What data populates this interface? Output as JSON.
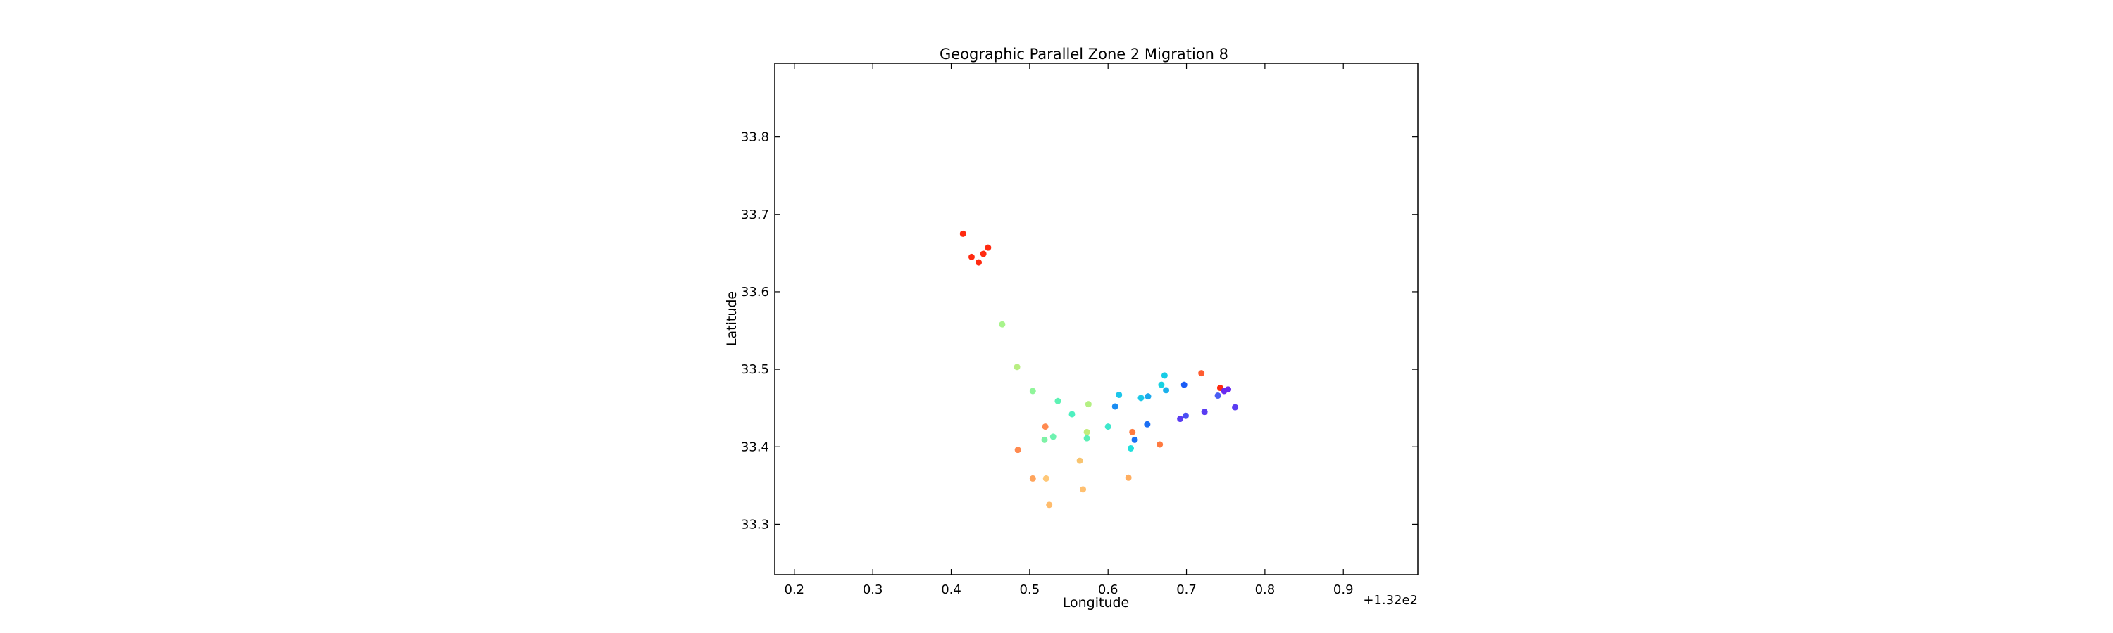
{
  "chart_data": {
    "type": "scatter",
    "title": "Geographic Parallel Zone 2 Migration 8",
    "xlabel": "Longitude",
    "ylabel": "Latitude",
    "x_offset_label": "+1.32e2",
    "xlim": [
      0.175,
      0.995
    ],
    "ylim": [
      33.235,
      33.895
    ],
    "xticks": [
      0.2,
      0.3,
      0.4,
      0.5,
      0.6,
      0.7,
      0.8,
      0.9
    ],
    "yticks": [
      33.3,
      33.4,
      33.5,
      33.6,
      33.7,
      33.8
    ],
    "xtick_labels": [
      "0.2",
      "0.3",
      "0.4",
      "0.5",
      "0.6",
      "0.7",
      "0.8",
      "0.9"
    ],
    "ytick_labels": [
      "33.3",
      "33.4",
      "33.5",
      "33.6",
      "33.7",
      "33.8"
    ],
    "grid": false,
    "colormap": "rainbow",
    "points": [
      {
        "x": 0.415,
        "y": 33.675,
        "color": "#ff2a10"
      },
      {
        "x": 0.447,
        "y": 33.657,
        "color": "#ff2a10"
      },
      {
        "x": 0.441,
        "y": 33.649,
        "color": "#ff2a10"
      },
      {
        "x": 0.426,
        "y": 33.645,
        "color": "#ff2a10"
      },
      {
        "x": 0.435,
        "y": 33.638,
        "color": "#ff2a10"
      },
      {
        "x": 0.465,
        "y": 33.558,
        "color": "#a8f48c"
      },
      {
        "x": 0.484,
        "y": 33.503,
        "color": "#b8ee82"
      },
      {
        "x": 0.504,
        "y": 33.472,
        "color": "#90f59a"
      },
      {
        "x": 0.536,
        "y": 33.459,
        "color": "#5df2b4"
      },
      {
        "x": 0.575,
        "y": 33.455,
        "color": "#b4f083"
      },
      {
        "x": 0.554,
        "y": 33.442,
        "color": "#4ef0c0"
      },
      {
        "x": 0.6,
        "y": 33.426,
        "color": "#3ee8cc"
      },
      {
        "x": 0.573,
        "y": 33.419,
        "color": "#c2ec7a"
      },
      {
        "x": 0.53,
        "y": 33.413,
        "color": "#6ef2b0"
      },
      {
        "x": 0.519,
        "y": 33.409,
        "color": "#7ef2a6"
      },
      {
        "x": 0.573,
        "y": 33.411,
        "color": "#5cefb6"
      },
      {
        "x": 0.52,
        "y": 33.426,
        "color": "#ff8a50"
      },
      {
        "x": 0.485,
        "y": 33.396,
        "color": "#ff8a50"
      },
      {
        "x": 0.631,
        "y": 33.419,
        "color": "#ff7a40"
      },
      {
        "x": 0.666,
        "y": 33.403,
        "color": "#ff7a40"
      },
      {
        "x": 0.629,
        "y": 33.398,
        "color": "#22e0dc"
      },
      {
        "x": 0.634,
        "y": 33.409,
        "color": "#1a70f4"
      },
      {
        "x": 0.564,
        "y": 33.382,
        "color": "#f8c470"
      },
      {
        "x": 0.504,
        "y": 33.359,
        "color": "#ffa45c"
      },
      {
        "x": 0.521,
        "y": 33.359,
        "color": "#ffc878"
      },
      {
        "x": 0.626,
        "y": 33.36,
        "color": "#ffae60"
      },
      {
        "x": 0.568,
        "y": 33.345,
        "color": "#ffc070"
      },
      {
        "x": 0.525,
        "y": 33.325,
        "color": "#ffbc6c"
      },
      {
        "x": 0.614,
        "y": 33.467,
        "color": "#1cc6ea"
      },
      {
        "x": 0.609,
        "y": 33.452,
        "color": "#1a8cf2"
      },
      {
        "x": 0.642,
        "y": 33.463,
        "color": "#1cc8e8"
      },
      {
        "x": 0.651,
        "y": 33.465,
        "color": "#1aa8ee"
      },
      {
        "x": 0.672,
        "y": 33.492,
        "color": "#16cce6"
      },
      {
        "x": 0.668,
        "y": 33.48,
        "color": "#18d2e2"
      },
      {
        "x": 0.674,
        "y": 33.473,
        "color": "#1ab0ec"
      },
      {
        "x": 0.65,
        "y": 33.429,
        "color": "#1a6ef4"
      },
      {
        "x": 0.697,
        "y": 33.48,
        "color": "#1a5cf6"
      },
      {
        "x": 0.719,
        "y": 33.495,
        "color": "#ff5c30"
      },
      {
        "x": 0.743,
        "y": 33.476,
        "color": "#ff2a10"
      },
      {
        "x": 0.748,
        "y": 33.472,
        "color": "#6a2af0"
      },
      {
        "x": 0.753,
        "y": 33.474,
        "color": "#6a2af0"
      },
      {
        "x": 0.74,
        "y": 33.466,
        "color": "#4a5ef4"
      },
      {
        "x": 0.762,
        "y": 33.451,
        "color": "#5a3cf2"
      },
      {
        "x": 0.723,
        "y": 33.445,
        "color": "#5a3cf2"
      },
      {
        "x": 0.699,
        "y": 33.44,
        "color": "#4a4ef4"
      },
      {
        "x": 0.692,
        "y": 33.436,
        "color": "#5a3cf2"
      }
    ]
  }
}
